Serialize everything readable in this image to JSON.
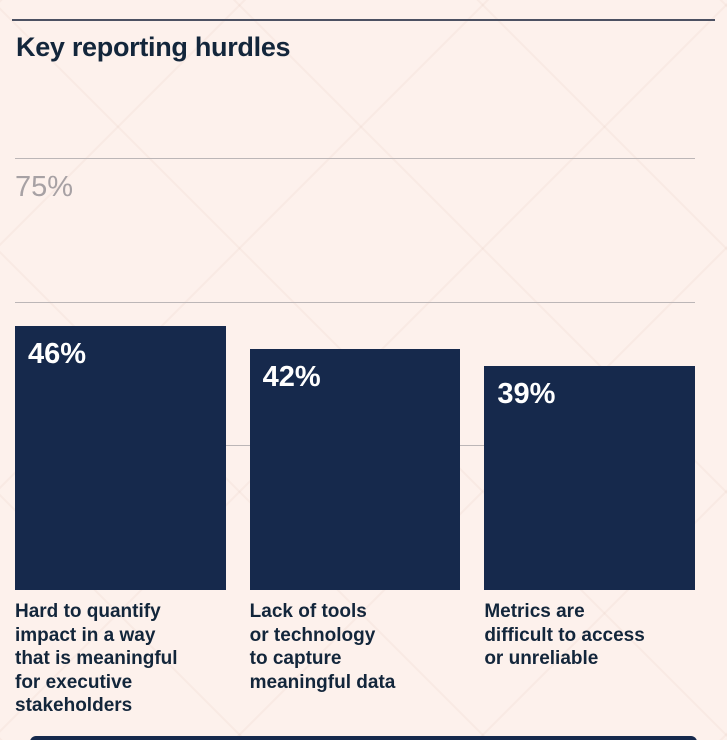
{
  "header": {
    "title": "Key reporting hurdles"
  },
  "chart_data": {
    "type": "bar",
    "title": "Key reporting hurdles",
    "categories": [
      "Hard to quantify\nimpact in a way\nthat is meaningful\nfor executive\nstakeholders",
      "Lack of tools\nor technology\nto capture\nmeaningful data",
      "Metrics are\ndifficult to access\nor unreliable"
    ],
    "values": [
      46,
      42,
      39
    ],
    "value_labels": [
      "46%",
      "42%",
      "39%"
    ],
    "xlabel": "",
    "ylabel": "",
    "ylim": [
      0,
      100
    ],
    "gridlines_pct": [
      25,
      50,
      75
    ],
    "visible_tick": {
      "value": 75,
      "label": "75%"
    },
    "legend": "none",
    "grid": "horizontal",
    "colors": {
      "bar": "#16294c",
      "value_label": "#ffffff",
      "gridline": "#bcb6b7",
      "tick_label": "#a7a1a4",
      "title": "#13263b",
      "category_label": "#13263b",
      "background": "#fdf1ec",
      "top_rule": "#4c5162"
    }
  }
}
